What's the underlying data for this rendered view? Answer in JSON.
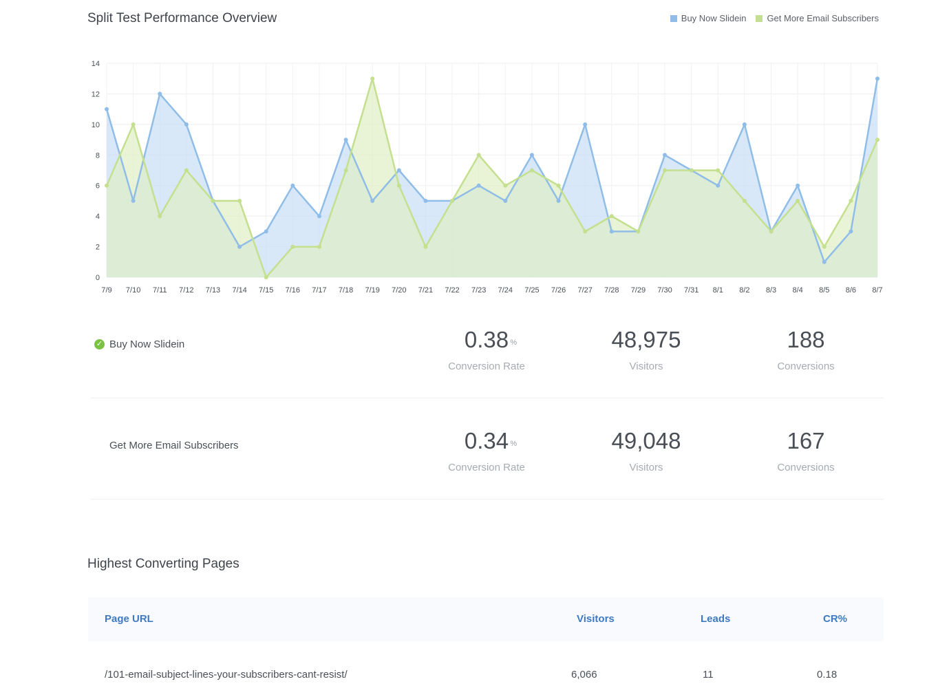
{
  "chart": {
    "title": "Split Test Performance Overview",
    "legend": [
      {
        "label": "Buy Now Slidein",
        "color": "#8fbde8"
      },
      {
        "label": "Get More Email Subscribers",
        "color": "#c4e08e"
      }
    ]
  },
  "chart_data": {
    "type": "area",
    "title": "Split Test Performance Overview",
    "xlabel": "",
    "ylabel": "",
    "ylim": [
      0,
      14
    ],
    "yticks": [
      0,
      2,
      4,
      6,
      8,
      10,
      12,
      14
    ],
    "grid": true,
    "legend_position": "top-right",
    "categories": [
      "7/9",
      "7/10",
      "7/11",
      "7/12",
      "7/13",
      "7/14",
      "7/15",
      "7/16",
      "7/17",
      "7/18",
      "7/19",
      "7/20",
      "7/21",
      "7/22",
      "7/23",
      "7/24",
      "7/25",
      "7/26",
      "7/27",
      "7/28",
      "7/29",
      "7/30",
      "7/31",
      "8/1",
      "8/2",
      "8/3",
      "8/4",
      "8/5",
      "8/6",
      "8/7"
    ],
    "series": [
      {
        "name": "Buy Now Slidein",
        "line_color": "#8fbde8",
        "fill_color": "#c7def6",
        "values": [
          11,
          5,
          12,
          10,
          5,
          2,
          3,
          6,
          4,
          9,
          5,
          7,
          5,
          5,
          6,
          5,
          8,
          5,
          10,
          3,
          3,
          8,
          7,
          6,
          10,
          3,
          6,
          1,
          3,
          13
        ]
      },
      {
        "name": "Get More Email Subscribers",
        "line_color": "#c4e08e",
        "fill_color": "#dfeec4",
        "values": [
          6,
          10,
          4,
          7,
          5,
          5,
          0,
          2,
          2,
          7,
          13,
          6,
          2,
          5,
          8,
          6,
          7,
          6,
          3,
          4,
          3,
          7,
          7,
          7,
          5,
          3,
          5,
          2,
          5,
          9
        ]
      }
    ]
  },
  "variants": [
    {
      "name": "Buy Now Slidein",
      "winner": true,
      "conversion_rate": "0.38",
      "pct_symbol": "%",
      "conversion_rate_label": "Conversion Rate",
      "visitors": "48,975",
      "visitors_label": "Visitors",
      "conversions": "188",
      "conversions_label": "Conversions"
    },
    {
      "name": "Get More Email Subscribers",
      "winner": false,
      "conversion_rate": "0.34",
      "pct_symbol": "%",
      "conversion_rate_label": "Conversion Rate",
      "visitors": "49,048",
      "visitors_label": "Visitors",
      "conversions": "167",
      "conversions_label": "Conversions"
    }
  ],
  "pages": {
    "title": "Highest Converting Pages",
    "headers": {
      "url": "Page URL",
      "visitors": "Visitors",
      "leads": "Leads",
      "cr": "CR%"
    },
    "rows": [
      {
        "url": "/101-email-subject-lines-your-subscribers-cant-resist/",
        "visitors": "6,066",
        "leads": "11",
        "cr": "0.18"
      }
    ]
  }
}
